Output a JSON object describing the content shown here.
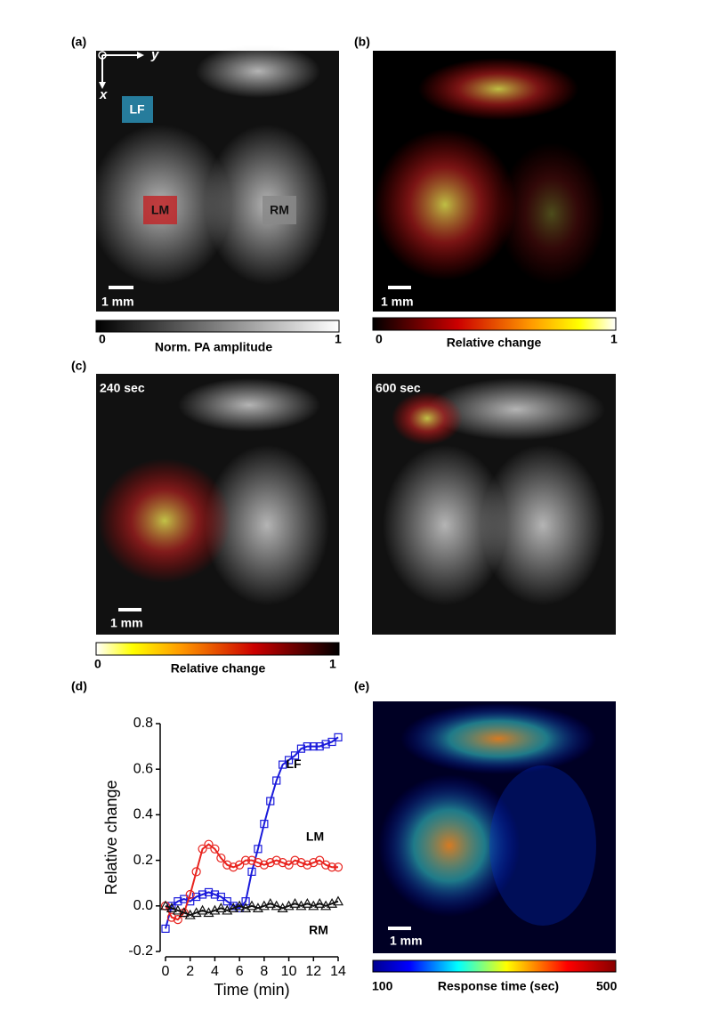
{
  "figure": {
    "panel_a": {
      "label": "(a)",
      "axis_labels": [
        "y",
        "x"
      ],
      "regions": [
        "LF",
        "LM",
        "RM"
      ],
      "scale_bar": "1 mm",
      "colorbar": {
        "title": "Norm. PA amplitude",
        "min": 0,
        "max": 1
      }
    },
    "panel_b": {
      "label": "(b)",
      "scale_bar": "1 mm",
      "colorbar": {
        "title": "Relative change",
        "min": 0,
        "max": 1
      }
    },
    "panel_c": {
      "label": "(c)",
      "frames": [
        "240 sec",
        "600 sec"
      ],
      "scale_bar": "1 mm",
      "colorbar": {
        "title": "Relative change",
        "min": 0,
        "max": 1
      }
    },
    "panel_d": {
      "label": "(d)"
    },
    "panel_e": {
      "label": "(e)",
      "scale_bar": "1 mm",
      "colorbar": {
        "title": "Response time (sec)",
        "min": 100,
        "max": 500
      }
    }
  },
  "chart_data": {
    "type": "line",
    "xlabel": "Time (min)",
    "ylabel": "Relative change",
    "x": [
      0,
      0.5,
      1,
      1.5,
      2,
      2.5,
      3,
      3.5,
      4,
      4.5,
      5,
      5.5,
      6,
      6.5,
      7,
      7.5,
      8,
      8.5,
      9,
      9.5,
      10,
      10.5,
      11,
      11.5,
      12,
      12.5,
      13,
      13.5,
      14
    ],
    "series": [
      {
        "name": "LF",
        "color": "#1a1adb",
        "marker": "square",
        "values": [
          -0.1,
          0.0,
          0.02,
          0.03,
          0.02,
          0.04,
          0.05,
          0.06,
          0.05,
          0.04,
          0.02,
          0.0,
          -0.01,
          0.02,
          0.15,
          0.25,
          0.36,
          0.46,
          0.55,
          0.62,
          0.64,
          0.66,
          0.69,
          0.7,
          0.7,
          0.7,
          0.71,
          0.72,
          0.74
        ]
      },
      {
        "name": "LM",
        "color": "#e8231e",
        "marker": "circle",
        "values": [
          0.0,
          -0.05,
          -0.06,
          -0.03,
          0.05,
          0.15,
          0.25,
          0.27,
          0.25,
          0.21,
          0.18,
          0.17,
          0.18,
          0.2,
          0.2,
          0.19,
          0.18,
          0.19,
          0.2,
          0.19,
          0.18,
          0.2,
          0.19,
          0.18,
          0.19,
          0.2,
          0.18,
          0.17,
          0.17
        ]
      },
      {
        "name": "RM",
        "color": "#111111",
        "marker": "triangle",
        "values": [
          0.0,
          -0.01,
          -0.02,
          -0.03,
          -0.04,
          -0.03,
          -0.02,
          -0.03,
          -0.02,
          -0.01,
          -0.02,
          -0.01,
          0.0,
          -0.01,
          0.0,
          -0.01,
          0.0,
          0.01,
          0.0,
          -0.01,
          0.0,
          0.01,
          0.0,
          0.01,
          0.0,
          0.01,
          0.0,
          0.01,
          0.02
        ]
      }
    ],
    "xlim": [
      0,
      14
    ],
    "xticks": [
      0,
      2,
      4,
      6,
      8,
      10,
      12,
      14
    ],
    "ylim": [
      -0.2,
      0.8
    ],
    "yticks": [
      -0.2,
      {
        "value": 0,
        "label": "0.0"
      },
      0.2,
      0.4,
      0.6,
      0.8
    ]
  }
}
